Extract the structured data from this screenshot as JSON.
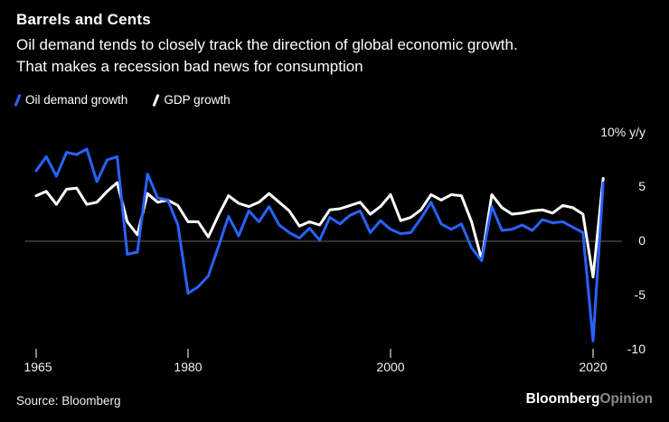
{
  "header": {
    "title": "Barrels and Cents",
    "subtitle_line1": "Oil demand tends to closely track the direction of global economic growth.",
    "subtitle_line2": "That makes a recession bad news for consumption"
  },
  "legend": [
    {
      "label": "Oil demand growth",
      "color": "#2962ff"
    },
    {
      "label": "GDP growth",
      "color": "#ffffff"
    }
  ],
  "colors": {
    "background": "#000000",
    "oil_line": "#2962ff",
    "gdp_line": "#ffffff",
    "zero_line": "#4f4f4f",
    "tick": "#cccccc"
  },
  "chart_data": {
    "type": "line",
    "title": "Barrels and Cents",
    "ylabel": "% y/y",
    "ylim": [
      -11,
      10
    ],
    "grid": "zero-line-only",
    "legend_position": "top-left",
    "yticks": [
      10,
      5,
      0,
      -5,
      -10
    ],
    "ytick_labels": [
      "10% y/y",
      "5",
      "0",
      "-5",
      "-10"
    ],
    "xticks": [
      1965,
      1980,
      2000,
      2020
    ],
    "xtick_labels": [
      "1965",
      "1980",
      "2000",
      "2020"
    ],
    "x": [
      1965,
      1966,
      1967,
      1968,
      1969,
      1970,
      1971,
      1972,
      1973,
      1974,
      1975,
      1976,
      1977,
      1978,
      1979,
      1980,
      1981,
      1982,
      1983,
      1984,
      1985,
      1986,
      1987,
      1988,
      1989,
      1990,
      1991,
      1992,
      1993,
      1994,
      1995,
      1996,
      1997,
      1998,
      1999,
      2000,
      2001,
      2002,
      2003,
      2004,
      2005,
      2006,
      2007,
      2008,
      2009,
      2010,
      2011,
      2012,
      2013,
      2014,
      2015,
      2016,
      2017,
      2018,
      2019,
      2020,
      2021
    ],
    "series": [
      {
        "name": "Oil demand growth",
        "color": "#2962ff",
        "values": [
          6.5,
          7.8,
          6.0,
          8.2,
          8.0,
          8.5,
          5.5,
          7.5,
          7.8,
          -1.2,
          -1.0,
          6.2,
          4.0,
          3.8,
          1.5,
          -4.8,
          -4.2,
          -3.2,
          -0.5,
          2.3,
          0.5,
          2.8,
          1.8,
          3.2,
          1.5,
          0.8,
          0.3,
          1.2,
          0.1,
          2.2,
          1.6,
          2.4,
          2.8,
          0.8,
          1.9,
          1.1,
          0.7,
          0.8,
          2.1,
          3.6,
          1.6,
          1.1,
          1.6,
          -0.6,
          -1.8,
          3.2,
          1.0,
          1.1,
          1.5,
          1.0,
          2.0,
          1.7,
          1.8,
          1.3,
          0.8,
          -9.2,
          5.4
        ]
      },
      {
        "name": "GDP growth",
        "color": "#ffffff",
        "values": [
          4.2,
          4.6,
          3.4,
          4.8,
          4.9,
          3.4,
          3.6,
          4.6,
          5.4,
          1.8,
          0.6,
          4.4,
          3.6,
          3.8,
          3.3,
          1.8,
          1.8,
          0.4,
          2.4,
          4.2,
          3.5,
          3.2,
          3.6,
          4.4,
          3.6,
          2.8,
          1.4,
          1.8,
          1.5,
          2.9,
          3.0,
          3.3,
          3.6,
          2.5,
          3.2,
          4.3,
          1.9,
          2.2,
          2.9,
          4.3,
          3.8,
          4.3,
          4.2,
          1.8,
          -1.7,
          4.3,
          3.1,
          2.5,
          2.6,
          2.8,
          2.9,
          2.6,
          3.3,
          3.1,
          2.5,
          -3.3,
          5.8
        ]
      }
    ]
  },
  "footer": {
    "source": "Source: Bloomberg",
    "brand": "Bloomberg",
    "brand_suffix": "Opinion"
  }
}
